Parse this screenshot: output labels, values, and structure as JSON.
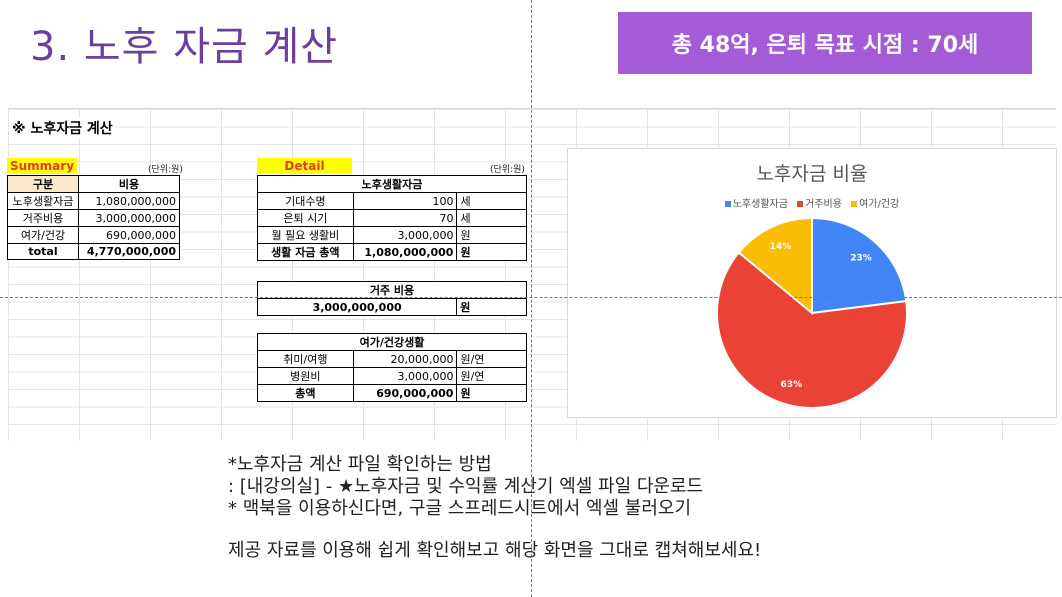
{
  "slide": {
    "title": "3. 노후 자금 계산",
    "goal_banner": "총 48억, 은퇴 목표 시점  : 70세"
  },
  "sheet": {
    "heading": "※ 노후자금 계산",
    "summary": {
      "tag": "Summary",
      "unit": "(단위:원)",
      "headers": [
        "구분",
        "비용"
      ],
      "rows": [
        {
          "label": "노후생활자금",
          "value": "1,080,000,000"
        },
        {
          "label": "거주비용",
          "value": "3,000,000,000"
        },
        {
          "label": "여가/건강",
          "value": "690,000,000"
        }
      ],
      "total_label": "total",
      "total_value": "4,770,000,000"
    },
    "detail": {
      "tag": "Detail",
      "unit": "(단위:원)",
      "living": {
        "title": "노후생활자금",
        "rows": [
          {
            "label": "기대수명",
            "value": "100",
            "unit": "세"
          },
          {
            "label": "은퇴 시기",
            "value": "70",
            "unit": "세"
          },
          {
            "label": "월 필요 생활비",
            "value": "3,000,000",
            "unit": "원"
          },
          {
            "label": "생활 자금 총액",
            "value": "1,080,000,000",
            "unit": "원"
          }
        ]
      },
      "housing": {
        "title": "거주 비용",
        "value": "3,000,000,000",
        "unit": "원"
      },
      "leisure": {
        "title": "여가/건강생활",
        "rows": [
          {
            "label": "취미/여행",
            "value": "20,000,000",
            "unit": "원/연"
          },
          {
            "label": "병원비",
            "value": "3,000,000",
            "unit": "원/연"
          },
          {
            "label": "총액",
            "value": "690,000,000",
            "unit": "원"
          }
        ]
      }
    }
  },
  "chart_data": {
    "type": "pie",
    "title": "노후자금 비율",
    "legend_position": "top",
    "categories": [
      "노후생활자금",
      "거주비용",
      "여가/건강"
    ],
    "values": [
      23,
      63,
      14
    ],
    "labels": [
      "23%",
      "63%",
      "14%"
    ],
    "colors": [
      "#4285f4",
      "#ea4335",
      "#fbbc04"
    ]
  },
  "notes": {
    "line1": "*노후자금 계산 파일 확인하는 방법",
    "line2": ": [내강의실] - ★노후자금 및 수익률 계산기 엑셀 파일 다운로드",
    "line3": "* 맥북을 이용하신다면, 구글 스프레드시트에서 엑셀 불러오기",
    "line4": "제공 자료를 이용해 쉽게 확인해보고 해당 화면을 그대로 캡쳐해보세요!"
  }
}
